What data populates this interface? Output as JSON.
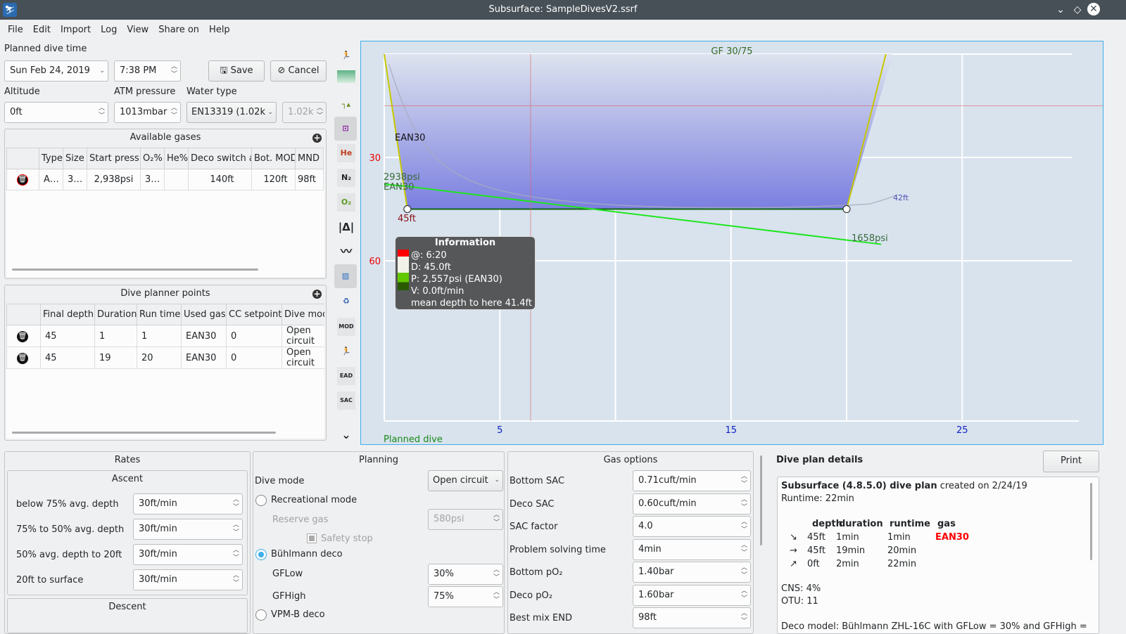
{
  "window": {
    "title": "Subsurface: SampleDivesV2.ssrf"
  },
  "menu": [
    "File",
    "Edit",
    "Import",
    "Log",
    "View",
    "Share on",
    "Help"
  ],
  "planned": {
    "label": "Planned dive time",
    "date": "Sun Feb 24, 2019",
    "time": "7:38 PM",
    "save": "Save",
    "cancel": "Cancel",
    "altitude_label": "Altitude",
    "altitude": "0ft",
    "atm_label": "ATM pressure",
    "atm": "1013mbar",
    "water_label": "Water type",
    "water": "EN13319 (1.02k",
    "water_density": "1.02k"
  },
  "gases": {
    "title": "Available gases",
    "headers": [
      "Type",
      "Size",
      "Start press",
      "O₂%",
      "He%",
      "Deco switch at",
      "Bot. MOD",
      "MND"
    ],
    "rows": [
      [
        "A…",
        "3…",
        "2,938psi",
        "3…",
        "",
        "140ft",
        "120ft",
        "98ft"
      ]
    ]
  },
  "points": {
    "title": "Dive planner points",
    "headers": [
      "Final depth",
      "Duration",
      "Run time",
      "Used gas",
      "CC setpoint",
      "Dive mode"
    ],
    "rows": [
      [
        "45",
        "1",
        "1",
        "EAN30",
        "0",
        "Open circuit"
      ],
      [
        "45",
        "19",
        "20",
        "EAN30",
        "0",
        "Open circuit"
      ]
    ]
  },
  "toolbar": [
    "dive-computer-icon",
    "tissue-heatmap-icon",
    "ceiling-icon",
    "calculated-ceiling-icon",
    "he-pressure-icon",
    "n2-pressure-icon",
    "o2-pressure-icon",
    "ruler-icon",
    "scale-graph-icon",
    "pictures-icon",
    "gas-icon",
    "mod-icon",
    "ndl-icon",
    "ead-icon",
    "sac-icon",
    "more-chevron-icon"
  ],
  "toolbar_labels": {
    "he": "He",
    "n2": "N₂",
    "o2": "O₂",
    "mod": "MOD",
    "ead": "EAD",
    "sac": "SAC"
  },
  "chart_data": {
    "type": "line",
    "title": "GF 30/75",
    "footer": "Planned dive",
    "x_ticks": [
      5,
      15,
      25
    ],
    "y_ticks": [
      30,
      60
    ],
    "xlim": [
      0,
      30
    ],
    "ylim_depth": [
      0,
      107
    ],
    "profile": {
      "x": [
        0,
        1,
        20,
        22
      ],
      "depth": [
        0,
        45,
        45,
        0
      ]
    },
    "labels": {
      "gas": "EAN30",
      "start_pressure": "2938psi",
      "start_gas": "EAN30",
      "max_depth": "45ft",
      "end_pressure": "1658psi",
      "tissue": "42ft"
    },
    "pressure": {
      "x": [
        1,
        21.5
      ],
      "psi": [
        2938,
        1658
      ]
    },
    "cursor_time_min": 6.33,
    "tooltip": {
      "title": "Information",
      "lines": [
        "@: 6:20",
        "D: 45.0ft",
        "P: 2,557psi (EAN30)",
        "V: 0.0ft/min",
        "mean depth to here 41.4ft"
      ]
    },
    "colors": {
      "profile_fill": "#7b7fe0",
      "pressure": "#1ee61e",
      "ascent": "#c8c800",
      "ceiling": "#e06060"
    }
  },
  "rates": {
    "title": "Rates",
    "ascent_title": "Ascent",
    "descent_title": "Descent",
    "rows": [
      {
        "label": "below 75% avg. depth",
        "value": "30ft/min"
      },
      {
        "label": "75% to 50% avg. depth",
        "value": "30ft/min"
      },
      {
        "label": "50% avg. depth to 20ft",
        "value": "30ft/min"
      },
      {
        "label": "20ft to surface",
        "value": "30ft/min"
      }
    ]
  },
  "planning": {
    "title": "Planning",
    "dive_mode_label": "Dive mode",
    "dive_mode": "Open circuit",
    "recreational": "Recreational mode",
    "reserve_label": "Reserve gas",
    "reserve": "580psi",
    "safety": "Safety stop",
    "buhlmann": "Bühlmann deco",
    "gflow_label": "GFLow",
    "gflow": "30%",
    "gfhigh_label": "GFHigh",
    "gfhigh": "75%",
    "vpm": "VPM-B deco"
  },
  "gasopts": {
    "title": "Gas options",
    "rows": [
      {
        "label": "Bottom SAC",
        "value": "0.71cuft/min"
      },
      {
        "label": "Deco SAC",
        "value": "0.60cuft/min"
      },
      {
        "label": "SAC factor",
        "value": "4.0"
      },
      {
        "label": "Problem solving time",
        "value": "4min"
      },
      {
        "label": "Bottom pO₂",
        "value": "1.40bar"
      },
      {
        "label": "Deco pO₂",
        "value": "1.60bar"
      },
      {
        "label": "Best mix END",
        "value": "98ft"
      }
    ]
  },
  "details": {
    "title": "Dive plan details",
    "print": "Print",
    "heading_bold": "Subsurface (4.8.5.0) dive plan",
    "heading_rest": " created on 2/24/19",
    "runtime": "Runtime: 22min",
    "headers": [
      "depth",
      "duration",
      "runtime",
      "gas"
    ],
    "rows": [
      [
        "↘",
        "45ft",
        "1min",
        "1min",
        "EAN30"
      ],
      [
        "→",
        "45ft",
        "19min",
        "20min",
        ""
      ],
      [
        "↗",
        "0ft",
        "2min",
        "22min",
        ""
      ]
    ],
    "cns": "CNS: 4%",
    "otu": "OTU: 11",
    "deco_model": "Deco model: Bühlmann ZHL-16C with GFLow = 30% and GFHigh ="
  }
}
